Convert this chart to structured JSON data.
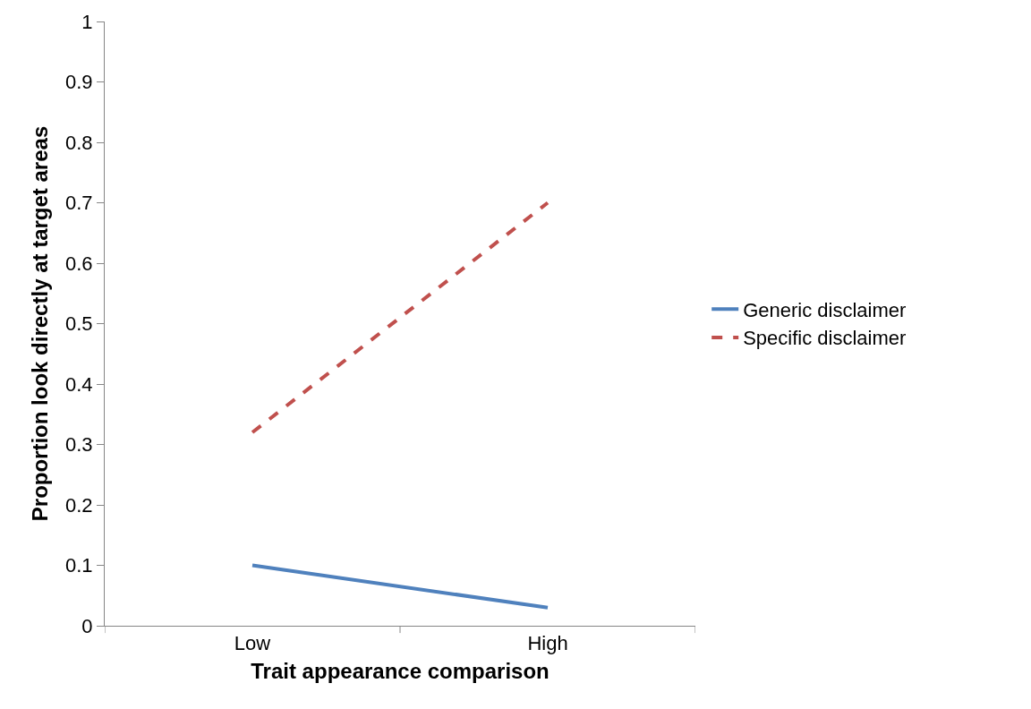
{
  "chart_data": {
    "type": "line",
    "xlabel": "Trait appearance comparison",
    "ylabel": "Proportion look directly at target areas",
    "categories": [
      "Low",
      "High"
    ],
    "series": [
      {
        "name": "Generic disclaimer",
        "color": "#4f81bd",
        "values": [
          0.1,
          0.03
        ],
        "line_style": "solid"
      },
      {
        "name": "Specific disclaimer",
        "color": "#c0504d",
        "values": [
          0.32,
          0.7
        ],
        "line_style": "dashed"
      }
    ],
    "ylim": [
      0,
      1
    ],
    "yticks": [
      0,
      0.1,
      0.2,
      0.3,
      0.4,
      0.5,
      0.6,
      0.7,
      0.8,
      0.9,
      1
    ],
    "legend": "right",
    "marker": "none"
  }
}
